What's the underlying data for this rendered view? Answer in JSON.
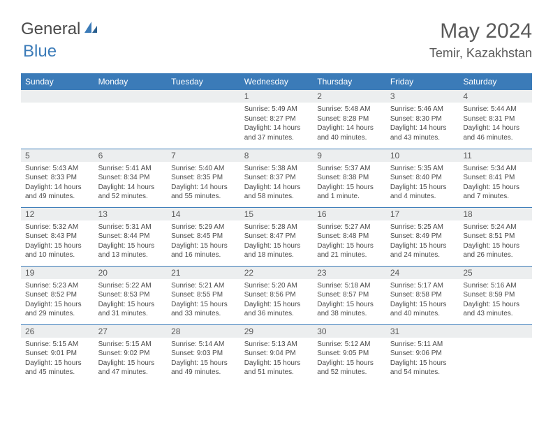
{
  "brand": {
    "part1": "General",
    "part2": "Blue"
  },
  "title": "May 2024",
  "location": "Temir, Kazakhstan",
  "colors": {
    "accent": "#3b7bb8",
    "header_bg": "#3b7bb8",
    "header_text": "#ffffff",
    "daynum_bg": "#eceeef",
    "body_text": "#4a4a4a",
    "title_text": "#5a5a5a",
    "bg": "#ffffff"
  },
  "fonts": {
    "title_size": 30,
    "location_size": 18,
    "header_size": 12,
    "daynum_size": 12,
    "body_size": 10
  },
  "weekdays": [
    "Sunday",
    "Monday",
    "Tuesday",
    "Wednesday",
    "Thursday",
    "Friday",
    "Saturday"
  ],
  "weeks": [
    [
      {
        "n": "",
        "lines": [
          "",
          "",
          "",
          ""
        ]
      },
      {
        "n": "",
        "lines": [
          "",
          "",
          "",
          ""
        ]
      },
      {
        "n": "",
        "lines": [
          "",
          "",
          "",
          ""
        ]
      },
      {
        "n": "1",
        "lines": [
          "Sunrise: 5:49 AM",
          "Sunset: 8:27 PM",
          "Daylight: 14 hours",
          "and 37 minutes."
        ]
      },
      {
        "n": "2",
        "lines": [
          "Sunrise: 5:48 AM",
          "Sunset: 8:28 PM",
          "Daylight: 14 hours",
          "and 40 minutes."
        ]
      },
      {
        "n": "3",
        "lines": [
          "Sunrise: 5:46 AM",
          "Sunset: 8:30 PM",
          "Daylight: 14 hours",
          "and 43 minutes."
        ]
      },
      {
        "n": "4",
        "lines": [
          "Sunrise: 5:44 AM",
          "Sunset: 8:31 PM",
          "Daylight: 14 hours",
          "and 46 minutes."
        ]
      }
    ],
    [
      {
        "n": "5",
        "lines": [
          "Sunrise: 5:43 AM",
          "Sunset: 8:33 PM",
          "Daylight: 14 hours",
          "and 49 minutes."
        ]
      },
      {
        "n": "6",
        "lines": [
          "Sunrise: 5:41 AM",
          "Sunset: 8:34 PM",
          "Daylight: 14 hours",
          "and 52 minutes."
        ]
      },
      {
        "n": "7",
        "lines": [
          "Sunrise: 5:40 AM",
          "Sunset: 8:35 PM",
          "Daylight: 14 hours",
          "and 55 minutes."
        ]
      },
      {
        "n": "8",
        "lines": [
          "Sunrise: 5:38 AM",
          "Sunset: 8:37 PM",
          "Daylight: 14 hours",
          "and 58 minutes."
        ]
      },
      {
        "n": "9",
        "lines": [
          "Sunrise: 5:37 AM",
          "Sunset: 8:38 PM",
          "Daylight: 15 hours",
          "and 1 minute."
        ]
      },
      {
        "n": "10",
        "lines": [
          "Sunrise: 5:35 AM",
          "Sunset: 8:40 PM",
          "Daylight: 15 hours",
          "and 4 minutes."
        ]
      },
      {
        "n": "11",
        "lines": [
          "Sunrise: 5:34 AM",
          "Sunset: 8:41 PM",
          "Daylight: 15 hours",
          "and 7 minutes."
        ]
      }
    ],
    [
      {
        "n": "12",
        "lines": [
          "Sunrise: 5:32 AM",
          "Sunset: 8:43 PM",
          "Daylight: 15 hours",
          "and 10 minutes."
        ]
      },
      {
        "n": "13",
        "lines": [
          "Sunrise: 5:31 AM",
          "Sunset: 8:44 PM",
          "Daylight: 15 hours",
          "and 13 minutes."
        ]
      },
      {
        "n": "14",
        "lines": [
          "Sunrise: 5:29 AM",
          "Sunset: 8:45 PM",
          "Daylight: 15 hours",
          "and 16 minutes."
        ]
      },
      {
        "n": "15",
        "lines": [
          "Sunrise: 5:28 AM",
          "Sunset: 8:47 PM",
          "Daylight: 15 hours",
          "and 18 minutes."
        ]
      },
      {
        "n": "16",
        "lines": [
          "Sunrise: 5:27 AM",
          "Sunset: 8:48 PM",
          "Daylight: 15 hours",
          "and 21 minutes."
        ]
      },
      {
        "n": "17",
        "lines": [
          "Sunrise: 5:25 AM",
          "Sunset: 8:49 PM",
          "Daylight: 15 hours",
          "and 24 minutes."
        ]
      },
      {
        "n": "18",
        "lines": [
          "Sunrise: 5:24 AM",
          "Sunset: 8:51 PM",
          "Daylight: 15 hours",
          "and 26 minutes."
        ]
      }
    ],
    [
      {
        "n": "19",
        "lines": [
          "Sunrise: 5:23 AM",
          "Sunset: 8:52 PM",
          "Daylight: 15 hours",
          "and 29 minutes."
        ]
      },
      {
        "n": "20",
        "lines": [
          "Sunrise: 5:22 AM",
          "Sunset: 8:53 PM",
          "Daylight: 15 hours",
          "and 31 minutes."
        ]
      },
      {
        "n": "21",
        "lines": [
          "Sunrise: 5:21 AM",
          "Sunset: 8:55 PM",
          "Daylight: 15 hours",
          "and 33 minutes."
        ]
      },
      {
        "n": "22",
        "lines": [
          "Sunrise: 5:20 AM",
          "Sunset: 8:56 PM",
          "Daylight: 15 hours",
          "and 36 minutes."
        ]
      },
      {
        "n": "23",
        "lines": [
          "Sunrise: 5:18 AM",
          "Sunset: 8:57 PM",
          "Daylight: 15 hours",
          "and 38 minutes."
        ]
      },
      {
        "n": "24",
        "lines": [
          "Sunrise: 5:17 AM",
          "Sunset: 8:58 PM",
          "Daylight: 15 hours",
          "and 40 minutes."
        ]
      },
      {
        "n": "25",
        "lines": [
          "Sunrise: 5:16 AM",
          "Sunset: 8:59 PM",
          "Daylight: 15 hours",
          "and 43 minutes."
        ]
      }
    ],
    [
      {
        "n": "26",
        "lines": [
          "Sunrise: 5:15 AM",
          "Sunset: 9:01 PM",
          "Daylight: 15 hours",
          "and 45 minutes."
        ]
      },
      {
        "n": "27",
        "lines": [
          "Sunrise: 5:15 AM",
          "Sunset: 9:02 PM",
          "Daylight: 15 hours",
          "and 47 minutes."
        ]
      },
      {
        "n": "28",
        "lines": [
          "Sunrise: 5:14 AM",
          "Sunset: 9:03 PM",
          "Daylight: 15 hours",
          "and 49 minutes."
        ]
      },
      {
        "n": "29",
        "lines": [
          "Sunrise: 5:13 AM",
          "Sunset: 9:04 PM",
          "Daylight: 15 hours",
          "and 51 minutes."
        ]
      },
      {
        "n": "30",
        "lines": [
          "Sunrise: 5:12 AM",
          "Sunset: 9:05 PM",
          "Daylight: 15 hours",
          "and 52 minutes."
        ]
      },
      {
        "n": "31",
        "lines": [
          "Sunrise: 5:11 AM",
          "Sunset: 9:06 PM",
          "Daylight: 15 hours",
          "and 54 minutes."
        ]
      },
      {
        "n": "",
        "lines": [
          "",
          "",
          "",
          ""
        ]
      }
    ]
  ]
}
